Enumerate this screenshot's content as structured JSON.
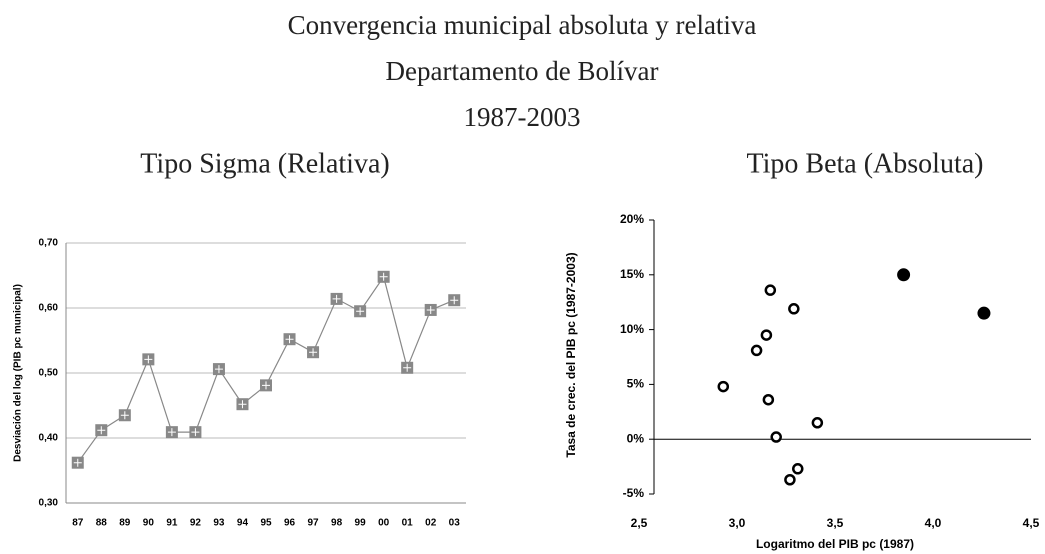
{
  "chart_data": [
    {
      "type": "line",
      "title": "Convergencia municipal absoluta y relativa",
      "subtitle": "Departamento de Bolívar",
      "period": "1987-2003",
      "chart_title": "Tipo Sigma (Relativa)",
      "y_label": "Desviación del log (PIB pc municipal)",
      "categories": [
        "87",
        "88",
        "89",
        "90",
        "91",
        "92",
        "93",
        "94",
        "95",
        "96",
        "97",
        "98",
        "99",
        "00",
        "01",
        "02",
        "03"
      ],
      "series": [
        {
          "color": "#888888",
          "values": [
            0.362,
            0.412,
            0.435,
            0.521,
            0.409,
            0.409,
            0.506,
            0.452,
            0.481,
            0.552,
            0.532,
            0.614,
            0.595,
            0.648,
            0.508,
            0.597,
            0.612
          ]
        }
      ],
      "ylim": [
        0.3,
        0.7
      ],
      "yticks": [
        {
          "value": 0.3,
          "label": "0,30"
        },
        {
          "value": 0.4,
          "label": "0,40"
        },
        {
          "value": 0.5,
          "label": "0,50"
        },
        {
          "value": 0.6,
          "label": "0,60"
        },
        {
          "value": 0.7,
          "label": "0,70"
        }
      ],
      "grid": true
    },
    {
      "type": "scatter",
      "chart_title": "Tipo Beta (Absoluta)",
      "x_label": "Logaritmo del PIB pc (1987)",
      "y_label": "Tasa de crec. del PIB pc (1987-2003)",
      "series": [
        {
          "marker": "open",
          "color": "#000000",
          "x": [
            2.93,
            3.17,
            3.29,
            3.15,
            3.1,
            3.16,
            3.2,
            3.41,
            3.31,
            3.27
          ],
          "values": [
            4.8,
            13.6,
            11.9,
            9.5,
            8.1,
            3.6,
            0.2,
            1.5,
            -2.7,
            -3.7
          ]
        },
        {
          "marker": "filled",
          "color": "#000000",
          "x": [
            3.85,
            4.26
          ],
          "values": [
            15.0,
            11.5
          ]
        }
      ],
      "xlim": [
        2.5,
        4.5
      ],
      "xticks": [
        {
          "value": 2.5,
          "label": "2,5"
        },
        {
          "value": 3.0,
          "label": "3,0"
        },
        {
          "value": 3.5,
          "label": "3,5"
        },
        {
          "value": 4.0,
          "label": "4,0"
        },
        {
          "value": 4.5,
          "label": "4,5"
        }
      ],
      "ylim": [
        -5,
        20
      ],
      "yticks": [
        {
          "value": -5,
          "label": "-5%"
        },
        {
          "value": 0,
          "label": "0%"
        },
        {
          "value": 5,
          "label": "5%"
        },
        {
          "value": 10,
          "label": "10%"
        },
        {
          "value": 15,
          "label": "15%"
        },
        {
          "value": 20,
          "label": "20%"
        }
      ]
    }
  ]
}
